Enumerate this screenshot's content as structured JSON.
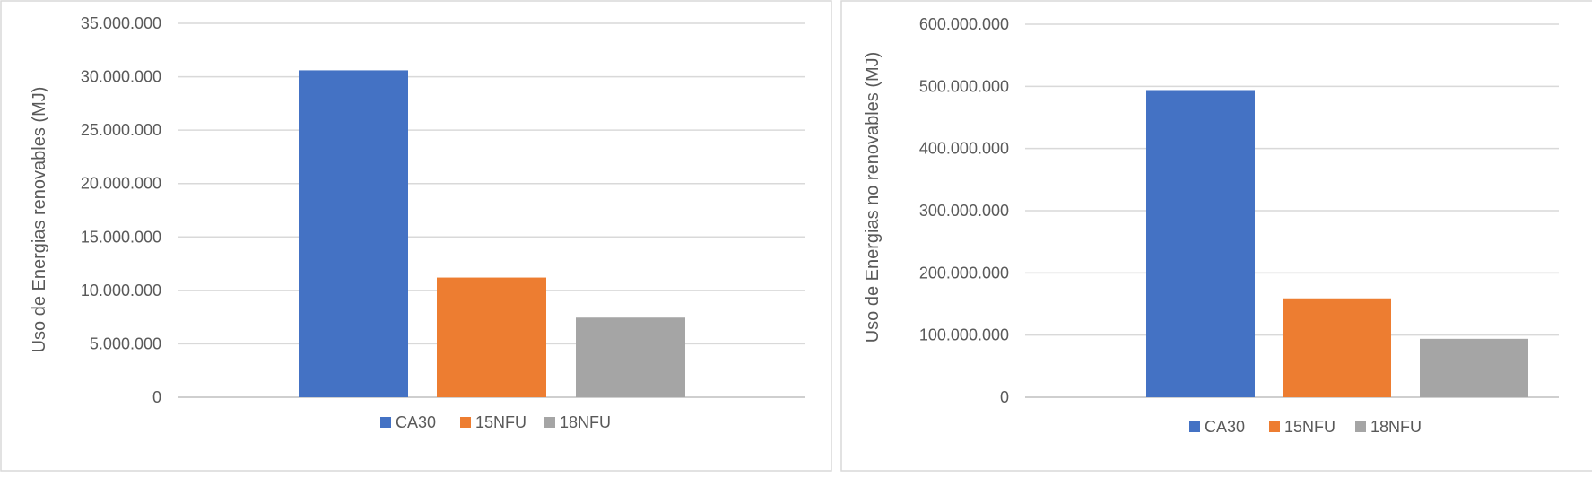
{
  "chart_data": [
    {
      "type": "bar",
      "title": "",
      "xlabel": "",
      "ylabel": "Uso de Energias renovables (MJ)",
      "ylim": [
        0,
        35000000
      ],
      "yticks": [
        0,
        5000000,
        10000000,
        15000000,
        20000000,
        25000000,
        30000000,
        35000000
      ],
      "ytick_labels": [
        "0",
        "5.000.000",
        "10.000.000",
        "15.000.000",
        "20.000.000",
        "25.000.000",
        "30.000.000",
        "35.000.000"
      ],
      "grid": true,
      "legend": "bottom",
      "series": [
        {
          "name": "CA30",
          "values": [
            30600000
          ],
          "color": "#4472C4"
        },
        {
          "name": "15NFU",
          "values": [
            11200000
          ],
          "color": "#ED7D31"
        },
        {
          "name": "18NFU",
          "values": [
            7450000
          ],
          "color": "#A5A5A5"
        }
      ]
    },
    {
      "type": "bar",
      "title": "",
      "xlabel": "",
      "ylabel": "Uso de Energias no renovables  (MJ)",
      "ylim": [
        0,
        600000000
      ],
      "yticks": [
        0,
        100000000,
        200000000,
        300000000,
        400000000,
        500000000,
        600000000
      ],
      "ytick_labels": [
        "0",
        "100.000.000",
        "200.000.000",
        "300.000.000",
        "400.000.000",
        "500.000.000",
        "600.000.000"
      ],
      "grid": true,
      "legend": "bottom",
      "series": [
        {
          "name": "CA30",
          "values": [
            494000000
          ],
          "color": "#4472C4"
        },
        {
          "name": "15NFU",
          "values": [
            159000000
          ],
          "color": "#ED7D31"
        },
        {
          "name": "18NFU",
          "values": [
            94000000
          ],
          "color": "#A5A5A5"
        }
      ]
    }
  ]
}
